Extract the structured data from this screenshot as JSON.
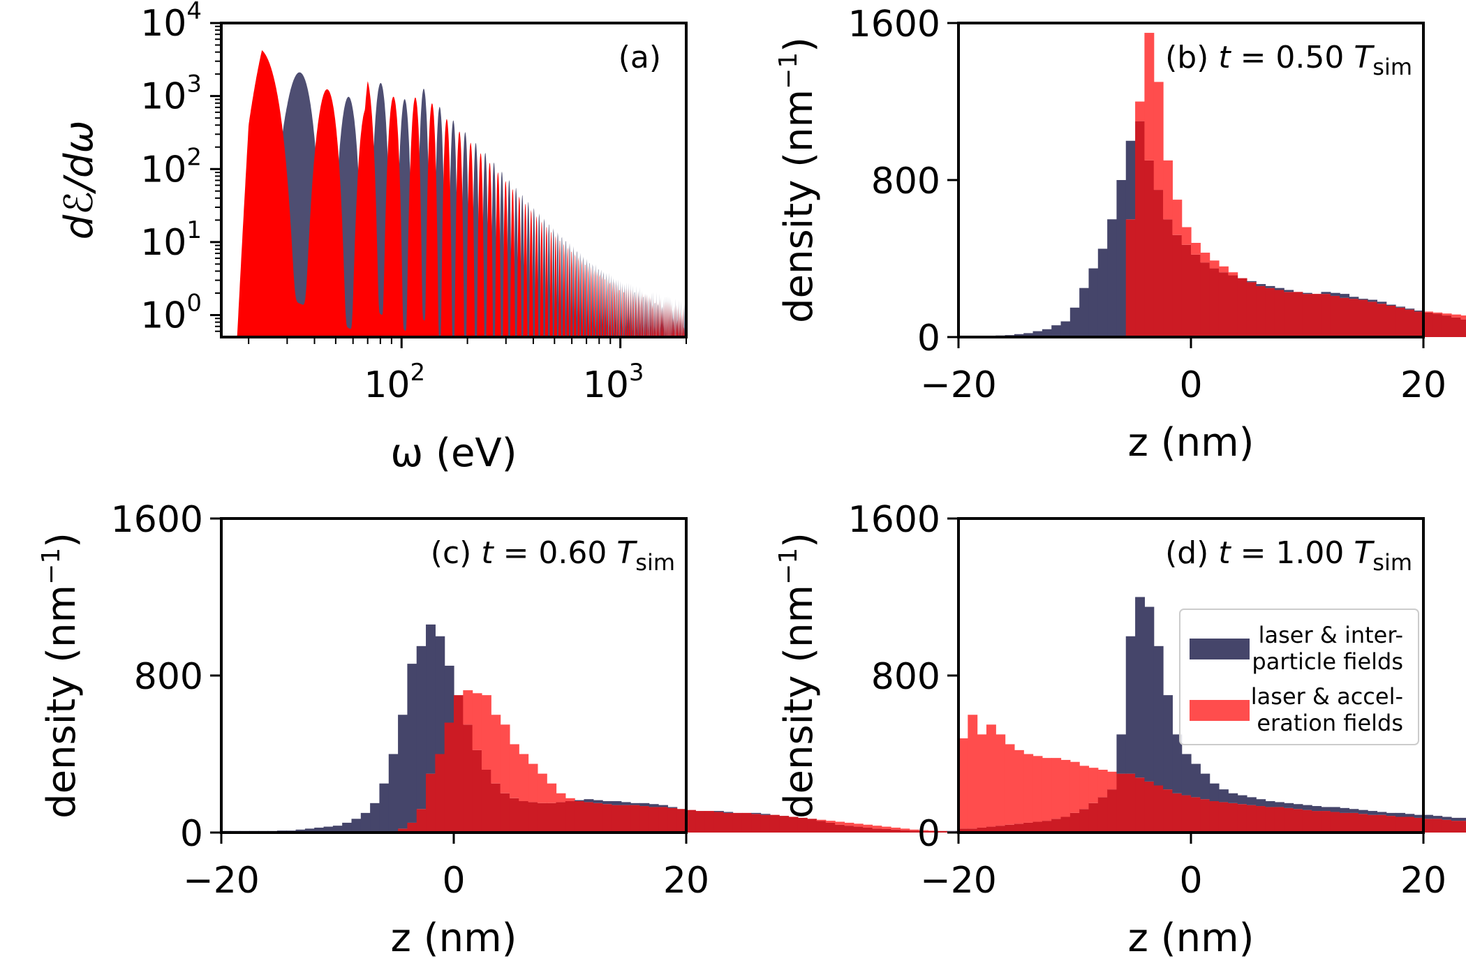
{
  "colors": {
    "interparticle": "#45456a",
    "acceleration": "#ff4d4d",
    "overlap": "#cc1b24",
    "spectrum_front": "#ff0000"
  },
  "legend": {
    "entries": [
      {
        "line1": "laser & inter-",
        "line2": "particle fields",
        "color": "#45456a"
      },
      {
        "line1": "laser & accel-",
        "line2": "eration fields",
        "color": "#ff4d4d"
      }
    ],
    "placement": "right"
  },
  "chart_data": [
    {
      "id": "a",
      "type": "area",
      "tag": "(a)",
      "xlabel": "ω (eV)",
      "ylabel": "dℰ/dω",
      "xscale": "log",
      "yscale": "log",
      "xlim": [
        15,
        2000
      ],
      "ylim": [
        0.5,
        10000
      ],
      "xticks": [
        {
          "value": 100,
          "base": "10",
          "exp": "2"
        },
        {
          "value": 1000,
          "base": "10",
          "exp": "3"
        }
      ],
      "yticks": [
        {
          "value": 1,
          "base": "10",
          "exp": "0"
        },
        {
          "value": 10,
          "base": "10",
          "exp": "1"
        },
        {
          "value": 100,
          "base": "10",
          "exp": "2"
        },
        {
          "value": 1000,
          "base": "10",
          "exp": "3"
        },
        {
          "value": 10000,
          "base": "10",
          "exp": "4"
        }
      ],
      "fundamental_eV": 23,
      "envelope": {
        "omega": [
          17,
          20,
          23,
          30,
          45,
          60,
          68,
          70,
          90,
          110,
          120,
          150,
          200,
          250,
          300,
          400,
          500,
          700,
          1000,
          1500,
          2000
        ],
        "peak": [
          0.5,
          800,
          5000,
          2500,
          1500,
          900,
          800,
          2000,
          1200,
          800,
          1500,
          700,
          300,
          150,
          80,
          30,
          15,
          6,
          3,
          2,
          1.5
        ]
      },
      "series": [
        {
          "name": "laser & inter-particle fields",
          "color": "#45456a"
        },
        {
          "name": "laser & acceleration fields",
          "color": "#ff0000"
        }
      ]
    },
    {
      "id": "b",
      "type": "bar",
      "tag_prefix": "(b)",
      "tag_time": "t = 0.50",
      "tag_T": "T",
      "tag_sub": "sim",
      "xlabel": "z (nm)",
      "ylabel": "density (nm",
      "ylabel_sup": "−1",
      "ylabel_close": ")",
      "xlim": [
        -20,
        20
      ],
      "ylim": [
        0,
        1600
      ],
      "xticks": [
        -20,
        0,
        20
      ],
      "yticks": [
        0,
        800,
        1600
      ],
      "bin_start": -20,
      "bin_width": 0.8,
      "series": [
        {
          "name": "laser & inter-particle fields",
          "values": [
            5,
            5,
            5,
            6,
            8,
            10,
            15,
            20,
            30,
            40,
            60,
            80,
            150,
            250,
            350,
            450,
            600,
            800,
            1000,
            1100,
            900,
            750,
            600,
            520,
            470,
            420,
            380,
            350,
            330,
            315,
            300,
            285,
            270,
            260,
            250,
            240,
            230,
            225,
            220,
            230,
            225,
            220,
            205,
            195,
            190,
            180,
            165,
            155,
            145,
            135,
            125,
            120,
            110,
            100,
            90,
            80,
            70,
            60,
            50,
            45,
            40,
            35,
            30,
            25,
            20,
            15,
            12,
            10,
            8,
            8,
            8,
            8,
            8,
            8,
            8,
            8,
            8,
            8,
            8,
            8
          ]
        },
        {
          "name": "laser & acceleration fields",
          "values": [
            0,
            0,
            0,
            0,
            0,
            0,
            0,
            0,
            0,
            0,
            0,
            0,
            0,
            0,
            0,
            0,
            0,
            0,
            600,
            1200,
            1550,
            1300,
            900,
            700,
            560,
            480,
            430,
            390,
            360,
            330,
            300,
            280,
            260,
            250,
            240,
            230,
            230,
            220,
            220,
            220,
            210,
            200,
            195,
            190,
            180,
            170,
            160,
            150,
            140,
            130,
            130,
            125,
            120,
            115,
            110,
            100,
            90,
            80,
            70,
            60,
            55,
            50,
            45,
            40,
            35,
            30,
            25,
            20,
            18,
            15,
            12,
            10,
            8,
            6,
            5,
            4,
            3,
            2,
            2,
            2
          ]
        }
      ]
    },
    {
      "id": "c",
      "type": "bar",
      "tag_prefix": "(c)",
      "tag_time": "t = 0.60",
      "tag_T": "T",
      "tag_sub": "sim",
      "xlabel": "z (nm)",
      "ylabel": "density (nm",
      "ylabel_sup": "−1",
      "ylabel_close": ")",
      "xlim": [
        -20,
        20
      ],
      "ylim": [
        0,
        1600
      ],
      "xticks": [
        -20,
        0,
        20
      ],
      "yticks": [
        0,
        800,
        1600
      ],
      "bin_start": -20,
      "bin_width": 0.8,
      "series": [
        {
          "name": "laser & inter-particle fields",
          "values": [
            8,
            8,
            8,
            8,
            8,
            8,
            10,
            10,
            15,
            20,
            25,
            30,
            35,
            50,
            70,
            100,
            150,
            250,
            400,
            600,
            860,
            950,
            1060,
            1000,
            850,
            700,
            550,
            420,
            320,
            250,
            200,
            175,
            160,
            155,
            150,
            150,
            155,
            160,
            165,
            170,
            165,
            160,
            160,
            155,
            150,
            150,
            145,
            140,
            130,
            120,
            115,
            110,
            110,
            110,
            105,
            100,
            100,
            100,
            95,
            90,
            85,
            80,
            75,
            70,
            60,
            50,
            40,
            35,
            30,
            25,
            20,
            18,
            15,
            12,
            10,
            8,
            8,
            8,
            8,
            8
          ]
        },
        {
          "name": "laser & acceleration fields",
          "values": [
            0,
            0,
            0,
            0,
            0,
            0,
            0,
            0,
            0,
            0,
            0,
            0,
            0,
            0,
            0,
            0,
            0,
            0,
            0,
            20,
            50,
            120,
            300,
            400,
            560,
            700,
            725,
            710,
            700,
            600,
            550,
            450,
            400,
            350,
            300,
            250,
            200,
            175,
            160,
            155,
            150,
            145,
            140,
            140,
            140,
            135,
            130,
            130,
            125,
            120,
            115,
            110,
            110,
            105,
            100,
            100,
            100,
            95,
            90,
            90,
            85,
            80,
            75,
            70,
            65,
            60,
            55,
            50,
            45,
            40,
            35,
            30,
            25,
            20,
            15,
            12,
            10,
            8,
            6,
            5
          ]
        }
      ]
    },
    {
      "id": "d",
      "type": "bar",
      "tag_prefix": "(d)",
      "tag_time": "t = 1.00",
      "tag_T": "T",
      "tag_sub": "sim",
      "xlabel": "z (nm)",
      "ylabel": "density (nm",
      "ylabel_sup": "−1",
      "ylabel_close": ")",
      "xlim": [
        -20,
        20
      ],
      "ylim": [
        0,
        1600
      ],
      "xticks": [
        -20,
        0,
        20
      ],
      "yticks": [
        0,
        800,
        1600
      ],
      "bin_start": -20,
      "bin_width": 0.8,
      "series": [
        {
          "name": "laser & inter-particle fields",
          "values": [
            20,
            20,
            25,
            30,
            35,
            40,
            45,
            50,
            55,
            60,
            70,
            80,
            100,
            120,
            150,
            180,
            220,
            500,
            1000,
            1200,
            1150,
            950,
            700,
            500,
            400,
            350,
            300,
            250,
            220,
            200,
            190,
            180,
            170,
            160,
            155,
            150,
            145,
            140,
            135,
            130,
            130,
            125,
            120,
            115,
            110,
            105,
            100,
            100,
            95,
            90,
            90,
            85,
            80,
            75,
            75,
            70,
            70,
            65,
            60,
            60,
            55,
            55,
            50,
            50,
            50,
            50,
            50,
            50,
            50,
            50,
            50,
            50,
            50,
            50,
            50,
            50,
            50,
            50,
            50,
            50
          ]
        },
        {
          "name": "laser & acceleration fields",
          "values": [
            480,
            600,
            500,
            550,
            500,
            450,
            420,
            400,
            390,
            380,
            380,
            370,
            360,
            340,
            330,
            320,
            310,
            300,
            300,
            280,
            260,
            240,
            220,
            200,
            190,
            180,
            170,
            160,
            155,
            150,
            145,
            140,
            135,
            130,
            130,
            125,
            120,
            115,
            110,
            110,
            105,
            100,
            100,
            95,
            90,
            90,
            85,
            80,
            80,
            75,
            70,
            70,
            65,
            60,
            60,
            55,
            55,
            50,
            50,
            45,
            45,
            40,
            40,
            35,
            35,
            30,
            30,
            25,
            25,
            20,
            20,
            20,
            15,
            15,
            15,
            10,
            10,
            10,
            8,
            8
          ]
        }
      ]
    }
  ]
}
